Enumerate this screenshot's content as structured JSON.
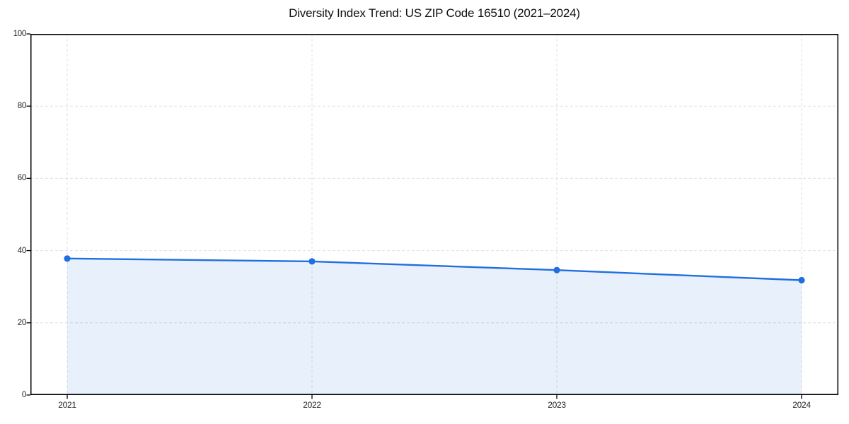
{
  "colors": {
    "line": "#1f6fe0",
    "marker": "#1f6fe0",
    "fill": "rgba(31, 111, 224, 0.10)",
    "grid": "#e0e0e0",
    "spine": "#000000",
    "tick_mark": "#000000",
    "title_text": "#111111",
    "tick_text": "#222222",
    "background": "#ffffff"
  },
  "chart_data": {
    "type": "line",
    "title": "Diversity Index Trend: US ZIP Code 16510 (2021–2024)",
    "categories": [
      "2021",
      "2022",
      "2023",
      "2024"
    ],
    "series": [
      {
        "name": "Diversity Index",
        "values": [
          37.8,
          37.0,
          34.6,
          31.8
        ]
      }
    ],
    "xlabel": "",
    "ylabel": "",
    "ylim": [
      0,
      100
    ],
    "yticks": [
      0,
      20,
      40,
      60,
      80,
      100
    ],
    "grid": true,
    "grid_style": "dashed",
    "area_fill": true,
    "markers": true,
    "legend_position": "none"
  }
}
